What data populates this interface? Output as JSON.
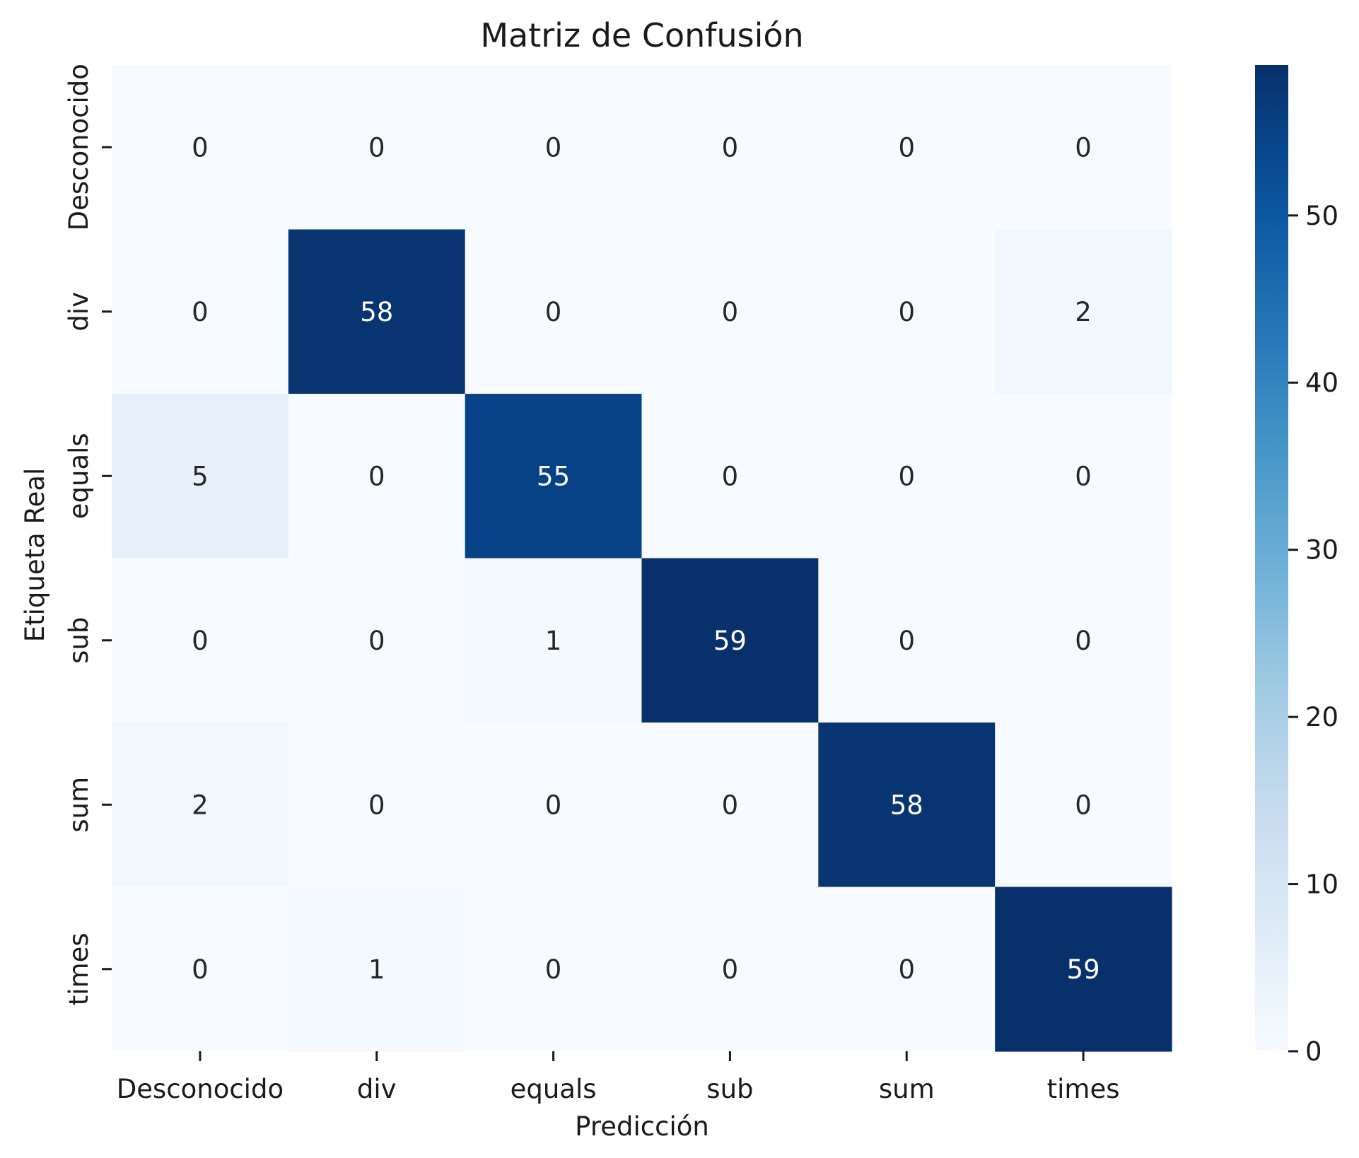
{
  "chart_data": {
    "type": "heatmap",
    "title": "Matriz de Confusión",
    "xlabel": "Predicción",
    "ylabel": "Etiqueta Real",
    "x_categories": [
      "Desconocido",
      "div",
      "equals",
      "sub",
      "sum",
      "times"
    ],
    "y_categories": [
      "Desconocido",
      "div",
      "equals",
      "sub",
      "sum",
      "times"
    ],
    "values": [
      [
        0,
        0,
        0,
        0,
        0,
        0
      ],
      [
        0,
        58,
        0,
        0,
        0,
        2
      ],
      [
        5,
        0,
        55,
        0,
        0,
        0
      ],
      [
        0,
        0,
        1,
        59,
        0,
        0
      ],
      [
        2,
        0,
        0,
        0,
        58,
        0
      ],
      [
        0,
        1,
        0,
        0,
        0,
        59
      ]
    ],
    "colormap": "Blues",
    "colorbar": {
      "min": 0,
      "max": 59,
      "ticks": [
        0,
        10,
        20,
        30,
        40,
        50
      ]
    },
    "annotations": true,
    "grid": false
  }
}
